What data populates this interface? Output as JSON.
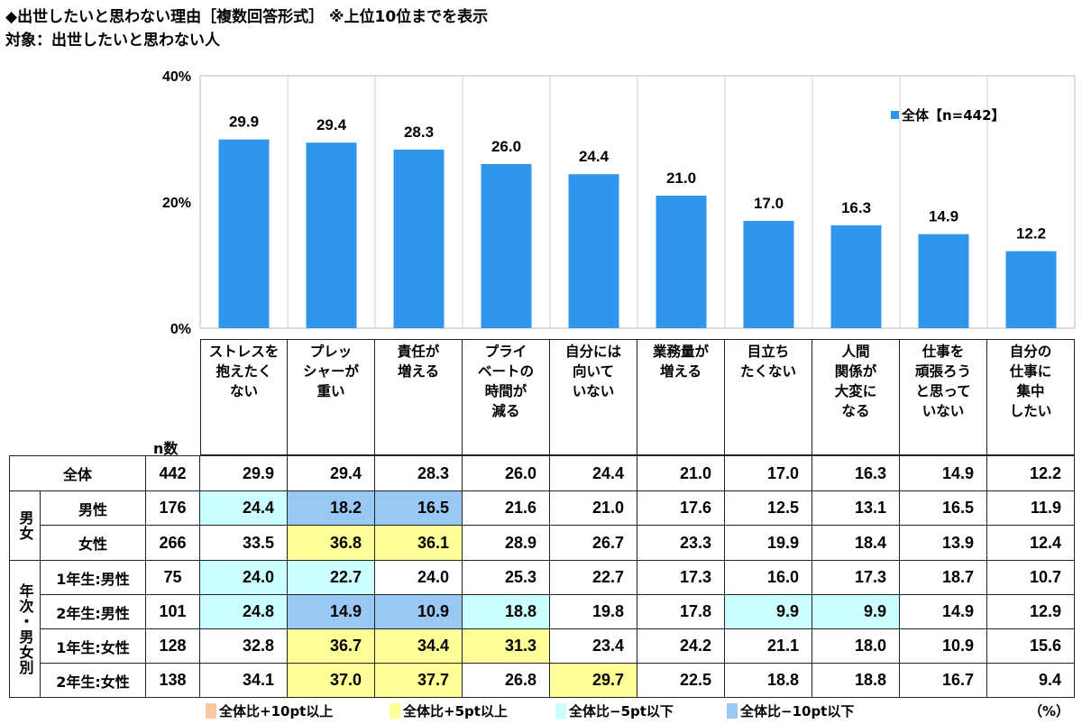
{
  "title": "◆出世したいと思わない理由［複数回答形式］ ※上位10位までを表示",
  "subtitle": "対象：出世したいと思わない人",
  "chart_data": {
    "type": "bar",
    "categories": [
      "ストレスを抱えたくない",
      "プレッシャーが重い",
      "責任が増える",
      "プライベートの時間が減る",
      "自分には向いていない",
      "業務量が増える",
      "目立ちたくない",
      "人間関係が大変になる",
      "仕事を頑張ろうと思っていない",
      "自分の仕事に集中したい"
    ],
    "category_lines": [
      [
        "ストレスを",
        "抱えたく",
        "ない"
      ],
      [
        "プレッ",
        "シャーが",
        "重い"
      ],
      [
        "責任が",
        "増える"
      ],
      [
        "プライ",
        "ベートの",
        "時間が",
        "減る"
      ],
      [
        "自分には",
        "向いて",
        "いない"
      ],
      [
        "業務量が",
        "増える"
      ],
      [
        "目立ち",
        "たくない"
      ],
      [
        "人間",
        "関係が",
        "大変に",
        "なる"
      ],
      [
        "仕事を",
        "頑張ろう",
        "と思って",
        "いない"
      ],
      [
        "自分の",
        "仕事に",
        "集中",
        "したい"
      ]
    ],
    "series": [
      {
        "name": "全体【n=442】",
        "values": [
          29.9,
          29.4,
          28.3,
          26.0,
          24.4,
          21.0,
          17.0,
          16.3,
          14.9,
          12.2
        ],
        "color": "#2F96EC"
      }
    ],
    "value_labels": [
      "29.9",
      "29.4",
      "28.3",
      "26.0",
      "24.4",
      "21.0",
      "17.0",
      "16.3",
      "14.9",
      "12.2"
    ],
    "ylim": [
      0,
      40
    ],
    "yticks": [
      "0%",
      "20%",
      "40%"
    ],
    "legend_position": "top-right",
    "grid": false
  },
  "table": {
    "n_header": "n数",
    "unit": "（%）",
    "groups": [
      {
        "label": "男女",
        "rows": [
          1,
          2
        ]
      },
      {
        "label": "年次・男女別",
        "rows": [
          3,
          4,
          5,
          6
        ]
      }
    ],
    "rows": [
      {
        "label": "全体",
        "n": "442",
        "values": [
          "29.9",
          "29.4",
          "28.3",
          "26.0",
          "24.4",
          "21.0",
          "17.0",
          "16.3",
          "14.9",
          "12.2"
        ],
        "highlight": [
          "",
          "",
          "",
          "",
          "",
          "",
          "",
          "",
          "",
          ""
        ]
      },
      {
        "label": "男性",
        "n": "176",
        "values": [
          "24.4",
          "18.2",
          "16.5",
          "21.6",
          "21.0",
          "17.6",
          "12.5",
          "13.1",
          "16.5",
          "11.9"
        ],
        "highlight": [
          "-5",
          "-10",
          "-10",
          "",
          "",
          "",
          "",
          "",
          "",
          ""
        ]
      },
      {
        "label": "女性",
        "n": "266",
        "values": [
          "33.5",
          "36.8",
          "36.1",
          "28.9",
          "26.7",
          "23.3",
          "19.9",
          "18.4",
          "13.9",
          "12.4"
        ],
        "highlight": [
          "",
          "+5",
          "+5",
          "",
          "",
          "",
          "",
          "",
          "",
          ""
        ]
      },
      {
        "label": "1年生:男性",
        "n": "75",
        "values": [
          "24.0",
          "22.7",
          "24.0",
          "25.3",
          "22.7",
          "17.3",
          "16.0",
          "17.3",
          "18.7",
          "10.7"
        ],
        "highlight": [
          "-5",
          "-5",
          "",
          "",
          "",
          "",
          "",
          "",
          "",
          ""
        ]
      },
      {
        "label": "2年生:男性",
        "n": "101",
        "values": [
          "24.8",
          "14.9",
          "10.9",
          "18.8",
          "19.8",
          "17.8",
          "9.9",
          "9.9",
          "14.9",
          "12.9"
        ],
        "highlight": [
          "-5",
          "-10",
          "-10",
          "-5",
          "",
          "",
          "-5",
          "-5",
          "",
          ""
        ]
      },
      {
        "label": "1年生:女性",
        "n": "128",
        "values": [
          "32.8",
          "36.7",
          "34.4",
          "31.3",
          "23.4",
          "24.2",
          "21.1",
          "18.0",
          "10.9",
          "15.6"
        ],
        "highlight": [
          "",
          "+5",
          "+5",
          "+5",
          "",
          "",
          "",
          "",
          "",
          ""
        ]
      },
      {
        "label": "2年生:女性",
        "n": "138",
        "values": [
          "34.1",
          "37.0",
          "37.7",
          "26.8",
          "29.7",
          "22.5",
          "18.8",
          "18.8",
          "16.7",
          "9.4"
        ],
        "highlight": [
          "",
          "+5",
          "+5",
          "",
          "+5",
          "",
          "",
          "",
          "",
          ""
        ]
      }
    ],
    "legend": [
      {
        "key": "+10",
        "label": "全体比+10pt以上",
        "color": "#F8C8A4"
      },
      {
        "key": "+5",
        "label": "全体比+5pt以上",
        "color": "#FFFF99"
      },
      {
        "key": "-5",
        "label": "全体比−5pt以下",
        "color": "#CCFFFF"
      },
      {
        "key": "-10",
        "label": "全体比−10pt以下",
        "color": "#99C8F4"
      }
    ]
  }
}
